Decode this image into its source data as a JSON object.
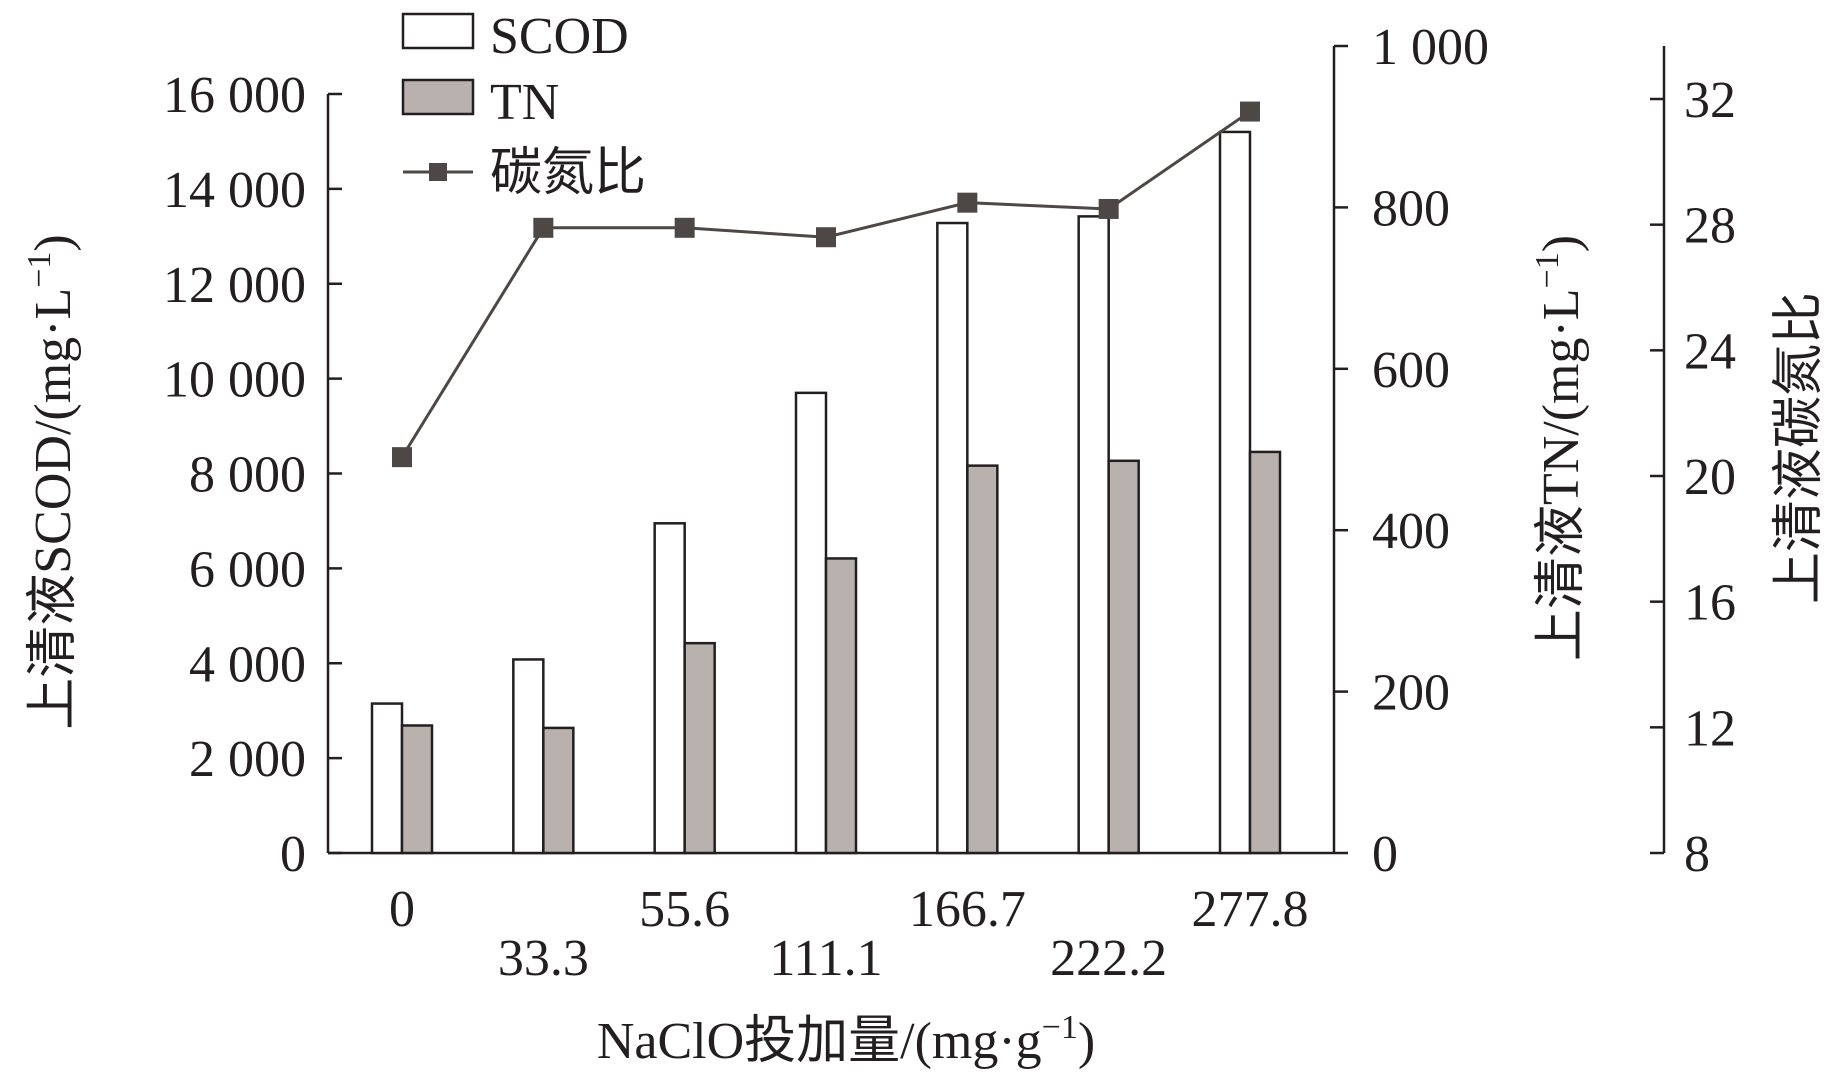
{
  "chart_data": {
    "type": "bar",
    "x_title": "NaClO投加量/(mg·g",
    "x_title_sup": "−1",
    "x_title_end": ")",
    "categories": [
      "0",
      "33.3",
      "55.6",
      "111.1",
      "166.7",
      "222.2",
      "277.8"
    ],
    "y_left": {
      "title": "上清液SCOD/(mg·L",
      "title_sup": "−1",
      "title_end": ")",
      "ylim": [
        0,
        16000
      ],
      "ticks": [
        0,
        2000,
        4000,
        6000,
        8000,
        10000,
        12000,
        14000,
        16000
      ],
      "tick_labels": [
        "0",
        "2 000",
        "4 000",
        "6 000",
        "8 000",
        "10 000",
        "12 000",
        "14 000",
        "16 000"
      ]
    },
    "y_right1": {
      "title": "上清液TN/(mg·L",
      "title_sup": "−1",
      "title_end": ")",
      "ylim": [
        0,
        1000
      ],
      "ticks": [
        0,
        200,
        400,
        600,
        800,
        1000
      ],
      "tick_labels": [
        "0",
        "200",
        "400",
        "600",
        "800",
        "1 000"
      ]
    },
    "y_right2": {
      "title": "上清液碳氮比",
      "ylim": [
        8,
        34
      ],
      "ticks": [
        8,
        12,
        16,
        20,
        24,
        28,
        32
      ],
      "tick_labels": [
        "8",
        "12",
        "16",
        "20",
        "24",
        "28",
        "32"
      ]
    },
    "series": [
      {
        "name": "SCOD",
        "kind": "bar",
        "axis": "y_left",
        "color": "#ffffff",
        "values": [
          3150,
          4080,
          6950,
          9700,
          13280,
          13420,
          15200
        ]
      },
      {
        "name": "TN",
        "kind": "bar",
        "axis": "y_right1",
        "color": "#b9b1ae",
        "values": [
          158,
          155,
          260,
          365,
          480,
          486,
          497
        ]
      },
      {
        "name": "碳氮比",
        "kind": "line",
        "axis": "y_right2",
        "color": "#4d4845",
        "values": [
          20.6,
          27.9,
          27.9,
          27.6,
          28.7,
          28.5,
          31.6
        ]
      }
    ],
    "legend_position": "top-left"
  }
}
